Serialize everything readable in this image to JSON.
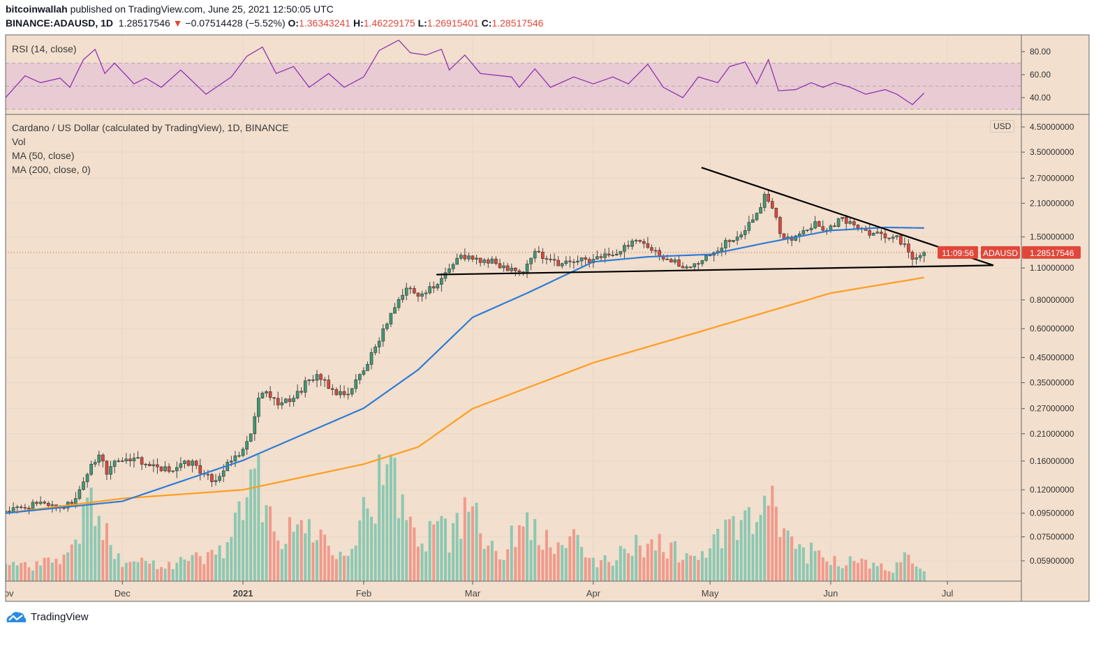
{
  "header": {
    "author": "bitcoinwallah",
    "published": "published on TradingView.com, June 25, 2021 12:50:05 UTC",
    "symbol": "BINANCE:ADAUSD, 1D",
    "last": "1.28517546",
    "change": "−0.07514428 (−5.52%)",
    "o_label": "O:",
    "o": "1.36343241",
    "h_label": "H:",
    "h": "1.46229175",
    "l_label": "L:",
    "l": "1.26915401",
    "c_label": "C:",
    "c": "1.28517546"
  },
  "legend": {
    "rsi": "RSI (14, close)",
    "title": "Cardano / US Dollar (calculated by TradingView), 1D, BINANCE",
    "vol": "Vol",
    "ma50": "MA (50, close)",
    "ma200": "MA (200, close, 0)"
  },
  "price_tag": {
    "symbol": "ADAUSD",
    "price": "1.28517546",
    "countdown": "11:09:56"
  },
  "currency": "USD",
  "footer": {
    "brand": "TradingView"
  },
  "colors": {
    "bg": "#f2dfcd",
    "up": "#3e9a75",
    "down": "#e0473a",
    "vol_up": "#8cc8b2",
    "vol_down": "#f09a8c",
    "ma50": "#2e7bd6",
    "ma200": "#ff9d1e",
    "rsi": "#8e36b0",
    "rsi_band": "#e9cbd3"
  },
  "chart_data": {
    "type": "candlestick",
    "title": "Cardano / US Dollar, 1D, BINANCE",
    "x_unit": "days since 2020-11-01",
    "y_scale": "log",
    "ylim": [
      0.052,
      5.0
    ],
    "price_ticks": [
      "4.50000000",
      "3.50000000",
      "2.70000000",
      "2.10000000",
      "1.50000000",
      "1.10000000",
      "0.80000000",
      "0.60000000",
      "0.45000000",
      "0.35000000",
      "0.27000000",
      "0.21000000",
      "0.16000000",
      "0.12000000",
      "0.09500000",
      "0.07500000",
      "0.05900000"
    ],
    "time_ticks": [
      {
        "label": "Nov",
        "day": 0
      },
      {
        "label": "Dec",
        "day": 30
      },
      {
        "label": "2021",
        "day": 61,
        "bold": true
      },
      {
        "label": "Feb",
        "day": 92
      },
      {
        "label": "Mar",
        "day": 120
      },
      {
        "label": "Apr",
        "day": 151
      },
      {
        "label": "May",
        "day": 181
      },
      {
        "label": "Jun",
        "day": 212
      },
      {
        "label": "Jul",
        "day": 242
      }
    ],
    "last_day": 236,
    "close_waypoints": [
      [
        0,
        0.097
      ],
      [
        5,
        0.1
      ],
      [
        10,
        0.105
      ],
      [
        15,
        0.1
      ],
      [
        18,
        0.11
      ],
      [
        20,
        0.13
      ],
      [
        22,
        0.155
      ],
      [
        24,
        0.17
      ],
      [
        26,
        0.14
      ],
      [
        28,
        0.16
      ],
      [
        30,
        0.16
      ],
      [
        33,
        0.165
      ],
      [
        36,
        0.155
      ],
      [
        40,
        0.145
      ],
      [
        44,
        0.15
      ],
      [
        48,
        0.16
      ],
      [
        51,
        0.14
      ],
      [
        53,
        0.13
      ],
      [
        56,
        0.145
      ],
      [
        58,
        0.16
      ],
      [
        61,
        0.18
      ],
      [
        63,
        0.21
      ],
      [
        65,
        0.3
      ],
      [
        67,
        0.32
      ],
      [
        70,
        0.28
      ],
      [
        74,
        0.3
      ],
      [
        78,
        0.36
      ],
      [
        80,
        0.38
      ],
      [
        83,
        0.33
      ],
      [
        87,
        0.31
      ],
      [
        89,
        0.33
      ],
      [
        91,
        0.38
      ],
      [
        93,
        0.42
      ],
      [
        95,
        0.5
      ],
      [
        97,
        0.6
      ],
      [
        99,
        0.7
      ],
      [
        103,
        0.9
      ],
      [
        107,
        0.85
      ],
      [
        110,
        0.9
      ],
      [
        113,
        1.05
      ],
      [
        117,
        1.25
      ],
      [
        120,
        1.2
      ],
      [
        126,
        1.15
      ],
      [
        130,
        1.1
      ],
      [
        133,
        1.05
      ],
      [
        136,
        1.3
      ],
      [
        140,
        1.2
      ],
      [
        143,
        1.15
      ],
      [
        147,
        1.18
      ],
      [
        151,
        1.2
      ],
      [
        155,
        1.25
      ],
      [
        158,
        1.3
      ],
      [
        162,
        1.45
      ],
      [
        165,
        1.35
      ],
      [
        170,
        1.2
      ],
      [
        174,
        1.1
      ],
      [
        177,
        1.15
      ],
      [
        181,
        1.25
      ],
      [
        185,
        1.45
      ],
      [
        190,
        1.6
      ],
      [
        193,
        1.9
      ],
      [
        195,
        2.3
      ],
      [
        197,
        2.0
      ],
      [
        199,
        1.55
      ],
      [
        202,
        1.45
      ],
      [
        205,
        1.6
      ],
      [
        208,
        1.75
      ],
      [
        211,
        1.6
      ],
      [
        214,
        1.8
      ],
      [
        217,
        1.75
      ],
      [
        221,
        1.6
      ],
      [
        225,
        1.55
      ],
      [
        228,
        1.5
      ],
      [
        231,
        1.4
      ],
      [
        233,
        1.2
      ],
      [
        234,
        1.22
      ],
      [
        236,
        1.285
      ]
    ],
    "ma50": [
      [
        0,
        0.095
      ],
      [
        30,
        0.107
      ],
      [
        61,
        0.161
      ],
      [
        92,
        0.271
      ],
      [
        106,
        0.398
      ],
      [
        120,
        0.672
      ],
      [
        134,
        0.856
      ],
      [
        151,
        1.17
      ],
      [
        165,
        1.23
      ],
      [
        181,
        1.26
      ],
      [
        195,
        1.41
      ],
      [
        212,
        1.6
      ],
      [
        226,
        1.65
      ],
      [
        236,
        1.64
      ]
    ],
    "ma200": [
      [
        0,
        0.095
      ],
      [
        30,
        0.11
      ],
      [
        61,
        0.12
      ],
      [
        92,
        0.155
      ],
      [
        106,
        0.184
      ],
      [
        120,
        0.27
      ],
      [
        151,
        0.427
      ],
      [
        181,
        0.6
      ],
      [
        212,
        0.856
      ],
      [
        236,
        1.0
      ]
    ],
    "volume_relative": [
      [
        0,
        15
      ],
      [
        10,
        15
      ],
      [
        18,
        30
      ],
      [
        20,
        55
      ],
      [
        22,
        68
      ],
      [
        25,
        40
      ],
      [
        30,
        20
      ],
      [
        40,
        15
      ],
      [
        50,
        20
      ],
      [
        55,
        25
      ],
      [
        58,
        45
      ],
      [
        62,
        60
      ],
      [
        65,
        100
      ],
      [
        68,
        55
      ],
      [
        72,
        35
      ],
      [
        76,
        55
      ],
      [
        80,
        40
      ],
      [
        86,
        30
      ],
      [
        90,
        40
      ],
      [
        93,
        68
      ],
      [
        96,
        85
      ],
      [
        100,
        85
      ],
      [
        104,
        50
      ],
      [
        108,
        40
      ],
      [
        111,
        72
      ],
      [
        114,
        40
      ],
      [
        118,
        55
      ],
      [
        120,
        82
      ],
      [
        124,
        35
      ],
      [
        128,
        25
      ],
      [
        131,
        40
      ],
      [
        134,
        55
      ],
      [
        136,
        57
      ],
      [
        140,
        25
      ],
      [
        145,
        40
      ],
      [
        150,
        15
      ],
      [
        155,
        20
      ],
      [
        160,
        25
      ],
      [
        165,
        36
      ],
      [
        170,
        30
      ],
      [
        175,
        20
      ],
      [
        180,
        25
      ],
      [
        186,
        45
      ],
      [
        190,
        50
      ],
      [
        193,
        50
      ],
      [
        196,
        65
      ],
      [
        198,
        55
      ],
      [
        202,
        35
      ],
      [
        206,
        25
      ],
      [
        212,
        20
      ],
      [
        220,
        15
      ],
      [
        228,
        10
      ],
      [
        232,
        25
      ],
      [
        236,
        12
      ]
    ],
    "trendlines": [
      {
        "name": "descending-resistance",
        "from": [
          178.8,
          3.0
        ],
        "to": [
          253.8,
          1.13
        ]
      },
      {
        "name": "horizontal-support",
        "from": [
          110.7,
          1.03
        ],
        "to": [
          253.8,
          1.13
        ]
      }
    ],
    "rsi": {
      "label": "RSI (14, close)",
      "ticks": [
        "80.00",
        "60.00",
        "40.00"
      ],
      "tick_values": [
        80,
        60,
        40
      ],
      "band": [
        30,
        70
      ],
      "points": [
        [
          0,
          40
        ],
        [
          5,
          59
        ],
        [
          9,
          53
        ],
        [
          14,
          57
        ],
        [
          16.5,
          49
        ],
        [
          20,
          73
        ],
        [
          23,
          82
        ],
        [
          25.5,
          61
        ],
        [
          28,
          70
        ],
        [
          33,
          52
        ],
        [
          36,
          57
        ],
        [
          40,
          49
        ],
        [
          45,
          64
        ],
        [
          51.5,
          43
        ],
        [
          58,
          58
        ],
        [
          62,
          76
        ],
        [
          66,
          84
        ],
        [
          69.5,
          61
        ],
        [
          74,
          67
        ],
        [
          78,
          49
        ],
        [
          83,
          61
        ],
        [
          87,
          49
        ],
        [
          92,
          58
        ],
        [
          96,
          81
        ],
        [
          101,
          90
        ],
        [
          104,
          79
        ],
        [
          108,
          77
        ],
        [
          112,
          82
        ],
        [
          114,
          64
        ],
        [
          118,
          77
        ],
        [
          122,
          61
        ],
        [
          130,
          58
        ],
        [
          132,
          49
        ],
        [
          136,
          65
        ],
        [
          140,
          49
        ],
        [
          146,
          58
        ],
        [
          151,
          52
        ],
        [
          156,
          58
        ],
        [
          160,
          52
        ],
        [
          165,
          69
        ],
        [
          169,
          49
        ],
        [
          174,
          40
        ],
        [
          178,
          58
        ],
        [
          183,
          53
        ],
        [
          186,
          67
        ],
        [
          190,
          71
        ],
        [
          193,
          52
        ],
        [
          196,
          73
        ],
        [
          198.6,
          46
        ],
        [
          203,
          47
        ],
        [
          207,
          53
        ],
        [
          210,
          49
        ],
        [
          213,
          53
        ],
        [
          217,
          49
        ],
        [
          221,
          43
        ],
        [
          226,
          47
        ],
        [
          229,
          43
        ],
        [
          233,
          34
        ],
        [
          236,
          44
        ]
      ]
    }
  }
}
